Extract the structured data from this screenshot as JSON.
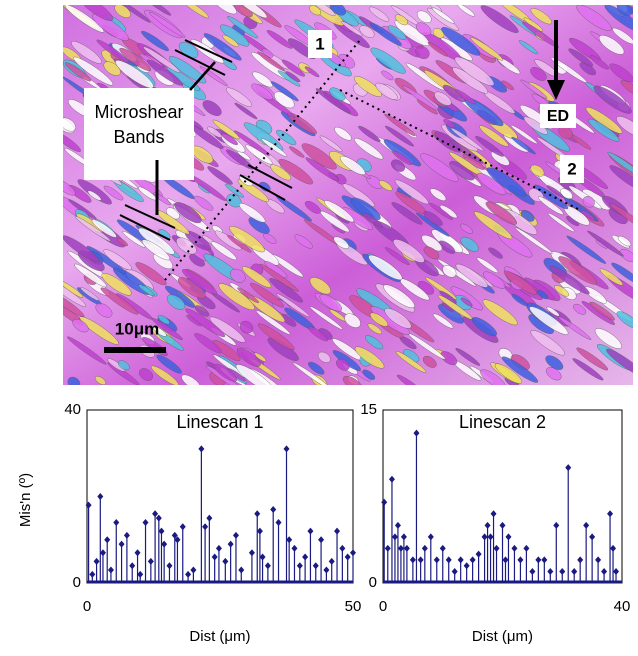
{
  "map": {
    "scan_labels": [
      "1",
      "2"
    ],
    "direction_label": "ED",
    "band_label": [
      "Microshear",
      "Bands"
    ],
    "scale_label": "10μm"
  },
  "chart_data": [
    {
      "type": "stem",
      "title": "Linescan 1",
      "x_label": "Dist (μm)",
      "y_label": "Mis'n (º)",
      "color": "#1a1a80",
      "x": [
        0.3,
        1,
        1.8,
        2.5,
        3,
        3.8,
        4.5,
        5.5,
        6.5,
        7.5,
        8.5,
        9.5,
        10,
        11,
        12,
        12.8,
        13.5,
        14,
        14.5,
        15.5,
        16.5,
        17,
        18,
        19,
        20,
        21.5,
        22.2,
        23,
        24,
        24.8,
        26,
        27,
        28,
        29,
        31,
        32,
        32.5,
        33,
        34,
        35,
        36,
        37.5,
        38,
        39,
        40,
        41,
        42,
        43,
        44,
        45,
        46,
        47,
        48,
        49,
        50
      ],
      "values": [
        18,
        2,
        5,
        20,
        7,
        10,
        3,
        14,
        9,
        11,
        4,
        7,
        2,
        14,
        5,
        16,
        15,
        12,
        9,
        4,
        11,
        10,
        13,
        2,
        3,
        31,
        13,
        15,
        6,
        8,
        5,
        9,
        11,
        3,
        7,
        16,
        12,
        6,
        4,
        17,
        14,
        31,
        10,
        8,
        4,
        6,
        12,
        4,
        10,
        3,
        5,
        12,
        8,
        6,
        7
      ],
      "xlim": [
        0,
        50
      ],
      "ylim": [
        0,
        40
      ],
      "xticks": [
        0,
        50
      ],
      "yticks": [
        0,
        40
      ]
    },
    {
      "type": "stem",
      "title": "Linescan 2",
      "x_label": "Dist (μm)",
      "color": "#1a1a80",
      "x": [
        0.2,
        0.8,
        1.5,
        2,
        2.5,
        3,
        3.5,
        4,
        5,
        5.6,
        6.3,
        7,
        8,
        9,
        10,
        11,
        12,
        13,
        14,
        15,
        16,
        17,
        17.5,
        18,
        18.5,
        19,
        20,
        20.5,
        21,
        22,
        23,
        24,
        25,
        26,
        27,
        28,
        29,
        30,
        31,
        32,
        33,
        34,
        35,
        36,
        37,
        38,
        38.5,
        39
      ],
      "values": [
        7,
        3,
        9,
        4,
        5,
        3,
        4,
        3,
        2,
        13,
        2,
        3,
        4,
        2,
        3,
        2,
        1,
        2,
        1.5,
        2,
        2.5,
        4,
        5,
        4,
        6,
        3,
        5,
        2,
        4,
        3,
        2,
        3,
        1,
        2,
        2,
        1,
        5,
        1,
        10,
        1,
        2,
        5,
        4,
        2,
        1,
        6,
        3,
        1
      ],
      "xlim": [
        0,
        40
      ],
      "ylim": [
        0,
        15
      ],
      "xticks": [
        0,
        40
      ],
      "yticks": [
        0,
        15
      ]
    }
  ]
}
